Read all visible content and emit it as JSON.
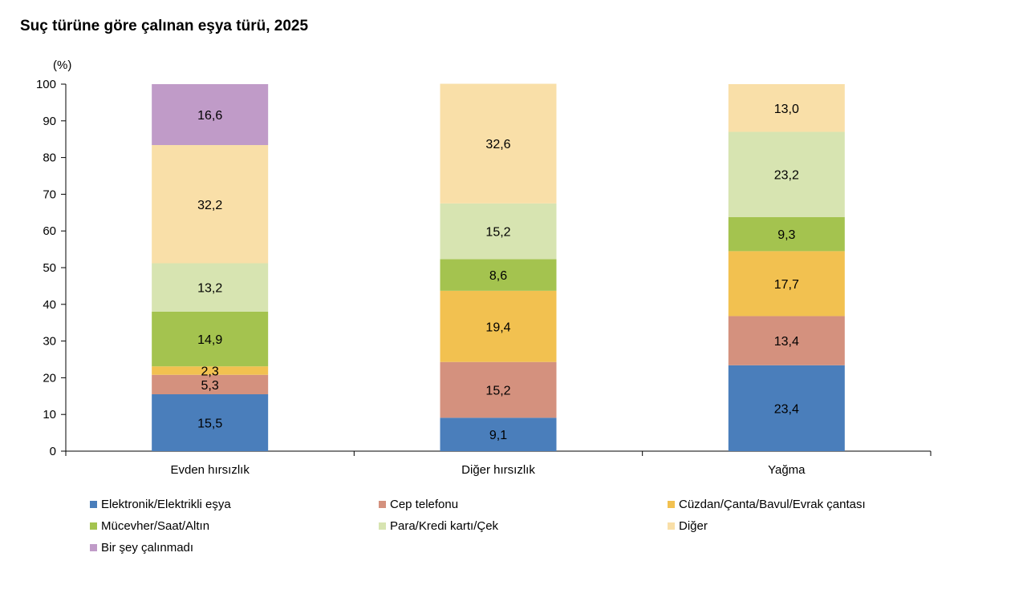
{
  "title": "Suç türüne göre çalınan eşya türü, 2025",
  "chart_data": {
    "type": "bar",
    "stacked": true,
    "title": "Suç türüne göre çalınan eşya türü, 2025",
    "ylabel": "(%)",
    "ylim": [
      0,
      100
    ],
    "yticks": [
      "0",
      "10",
      "20",
      "30",
      "40",
      "50",
      "60",
      "70",
      "80",
      "90",
      "100"
    ],
    "categories": [
      "Evden hırsızlık",
      "Diğer hırsızlık",
      "Yağma"
    ],
    "series": [
      {
        "name": "Elektronik/Elektrikli eşya",
        "color": "#4a7ebb",
        "values": [
          15.5,
          9.1,
          23.4
        ],
        "labels": [
          "15,5",
          "9,1",
          "23,4"
        ]
      },
      {
        "name": "Cep telefonu",
        "color": "#d4917e",
        "values": [
          5.3,
          15.2,
          13.4
        ],
        "labels": [
          "5,3",
          "15,2",
          "13,4"
        ]
      },
      {
        "name": "Cüzdan/Çanta/Bavul/Evrak çantası",
        "color": "#f2c150",
        "values": [
          2.3,
          19.4,
          17.7
        ],
        "labels": [
          "2,3",
          "19,4",
          "17,7"
        ]
      },
      {
        "name": "Mücevher/Saat/Altın",
        "color": "#a4c34f",
        "values": [
          14.9,
          8.6,
          9.3
        ],
        "labels": [
          "14,9",
          "8,6",
          "9,3"
        ]
      },
      {
        "name": "Para/Kredi kartı/Çek",
        "color": "#d7e4b1",
        "values": [
          13.2,
          15.2,
          23.2
        ],
        "labels": [
          "13,2",
          "15,2",
          "23,2"
        ]
      },
      {
        "name": "Diğer",
        "color": "#f9dfa8",
        "values": [
          32.2,
          32.6,
          13.0
        ],
        "labels": [
          "32,2",
          "32,6",
          "13,0"
        ]
      },
      {
        "name": "Bir şey çalınmadı",
        "color": "#c09bc8",
        "values": [
          16.6,
          0,
          0
        ],
        "labels": [
          "16,6",
          "",
          ""
        ]
      }
    ],
    "legend_position": "bottom",
    "grid": false
  }
}
